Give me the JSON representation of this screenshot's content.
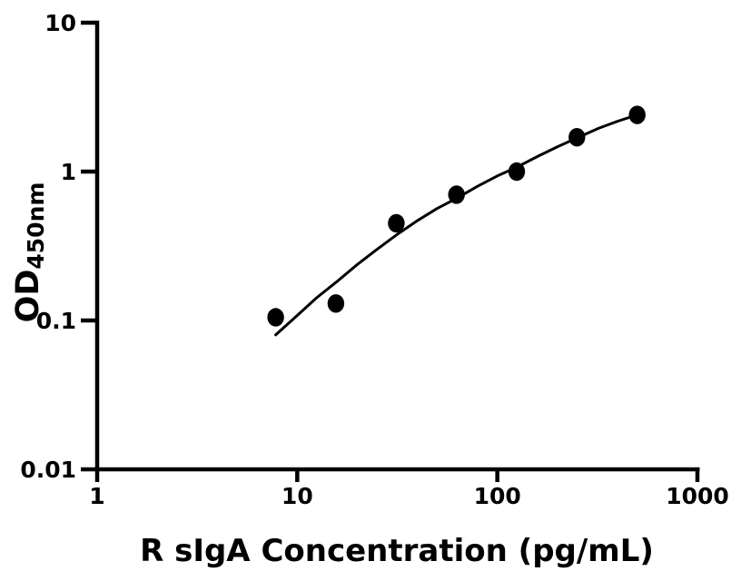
{
  "chart_data": {
    "type": "scatter",
    "title": "",
    "xlabel": "R sIgA Concentration (pg/mL)",
    "ylabel_main": "OD",
    "ylabel_subscript": "450nm",
    "x_scale": "log",
    "y_scale": "log",
    "xlim": [
      1,
      1000
    ],
    "ylim": [
      0.01,
      10
    ],
    "grid": false,
    "legend_position": "none",
    "x_ticks": [
      {
        "value": 1,
        "label": "1"
      },
      {
        "value": 10,
        "label": "10"
      },
      {
        "value": 100,
        "label": "100"
      },
      {
        "value": 1000,
        "label": "1000"
      }
    ],
    "y_ticks": [
      {
        "value": 0.01,
        "label": "0.01"
      },
      {
        "value": 0.1,
        "label": "0.1"
      },
      {
        "value": 1,
        "label": "1"
      },
      {
        "value": 10,
        "label": "10"
      }
    ],
    "series": [
      {
        "name": "standard-data-points",
        "type": "scatter",
        "marker": "filled-circle",
        "color": "#000000",
        "points": [
          {
            "x": 7.8,
            "y": 0.105
          },
          {
            "x": 15.6,
            "y": 0.13
          },
          {
            "x": 31.25,
            "y": 0.45
          },
          {
            "x": 62.5,
            "y": 0.7
          },
          {
            "x": 125,
            "y": 1.0
          },
          {
            "x": 250,
            "y": 1.7
          },
          {
            "x": 500,
            "y": 2.4
          }
        ]
      },
      {
        "name": "fit-curve",
        "type": "line",
        "color": "#000000",
        "points": [
          {
            "x": 7.8,
            "y": 0.08
          },
          {
            "x": 10,
            "y": 0.108
          },
          {
            "x": 12.5,
            "y": 0.142
          },
          {
            "x": 15.6,
            "y": 0.18
          },
          {
            "x": 20,
            "y": 0.238
          },
          {
            "x": 25,
            "y": 0.3
          },
          {
            "x": 31.25,
            "y": 0.375
          },
          {
            "x": 40,
            "y": 0.47
          },
          {
            "x": 50,
            "y": 0.565
          },
          {
            "x": 62.5,
            "y": 0.66
          },
          {
            "x": 80,
            "y": 0.8
          },
          {
            "x": 100,
            "y": 0.935
          },
          {
            "x": 125,
            "y": 1.07
          },
          {
            "x": 160,
            "y": 1.27
          },
          {
            "x": 200,
            "y": 1.47
          },
          {
            "x": 250,
            "y": 1.68
          },
          {
            "x": 320,
            "y": 1.95
          },
          {
            "x": 400,
            "y": 2.18
          },
          {
            "x": 500,
            "y": 2.4
          }
        ]
      }
    ],
    "colors": {
      "foreground": "#000000",
      "background": "#ffffff"
    }
  }
}
